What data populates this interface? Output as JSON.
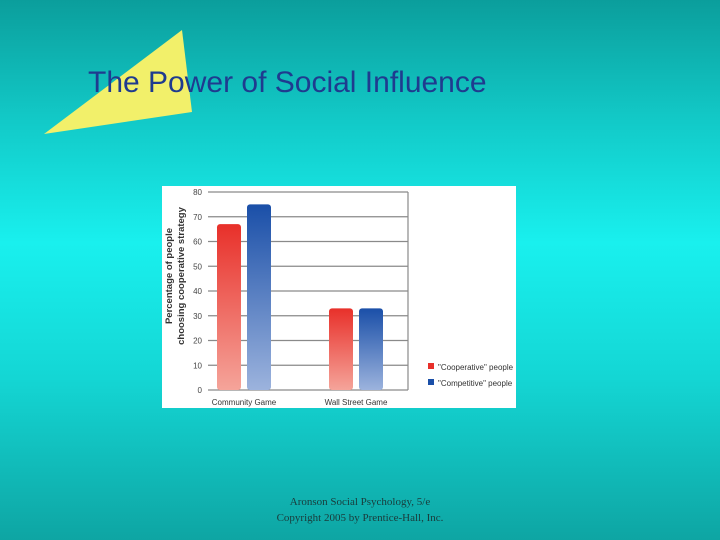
{
  "slide": {
    "title": "The Power of Social Influence",
    "footer_line1": "Aronson Social Psychology, 5/e",
    "footer_line2": "Copyright 2005 by Prentice-Hall, Inc."
  },
  "colors": {
    "title": "#1f3b8f",
    "accent_triangle": "#f2f06a",
    "series_cooperative": "#e8302a",
    "series_competitive": "#1a4fa8"
  },
  "chart_data": {
    "type": "bar",
    "categories": [
      "Community Game",
      "Wall Street Game"
    ],
    "series": [
      {
        "name": "\"Cooperative\" people",
        "values": [
          67,
          33
        ]
      },
      {
        "name": "\"Competitive\" people",
        "values": [
          75,
          33
        ]
      }
    ],
    "ylabel_line1": "Percentage of people",
    "ylabel_line2": "choosing cooperative strategy",
    "ylim": [
      0,
      80
    ],
    "yticks": [
      0,
      10,
      20,
      30,
      40,
      50,
      60,
      70,
      80
    ],
    "grid": true,
    "legend_position": "bottom-right"
  }
}
